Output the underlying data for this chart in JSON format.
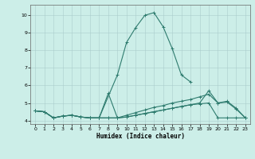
{
  "xlabel": "Humidex (Indice chaleur)",
  "bg_color": "#cceee8",
  "grid_color": "#aacccc",
  "line_color": "#2e7b6e",
  "xlim": [
    -0.5,
    23.5
  ],
  "ylim": [
    3.8,
    10.6
  ],
  "yticks": [
    4,
    5,
    6,
    7,
    8,
    9,
    10
  ],
  "xticks": [
    0,
    1,
    2,
    3,
    4,
    5,
    6,
    7,
    8,
    9,
    10,
    11,
    12,
    13,
    14,
    15,
    16,
    17,
    18,
    19,
    20,
    21,
    22,
    23
  ],
  "series": [
    {
      "x": [
        0,
        1,
        2,
        3,
        4,
        5,
        6,
        7,
        9,
        10,
        11,
        12,
        13,
        14,
        15,
        16,
        17
      ],
      "y": [
        4.55,
        4.5,
        4.15,
        4.25,
        4.3,
        4.2,
        4.15,
        4.15,
        6.6,
        8.45,
        9.3,
        10.0,
        10.15,
        9.35,
        8.1,
        6.6,
        6.2
      ]
    },
    {
      "x": [
        0,
        1,
        2,
        3,
        4,
        5,
        6,
        7,
        8,
        9,
        10,
        11,
        12,
        13,
        14,
        15,
        16,
        17,
        18,
        19,
        20,
        21,
        22,
        23
      ],
      "y": [
        4.55,
        4.5,
        4.15,
        4.25,
        4.3,
        4.2,
        4.15,
        4.15,
        5.55,
        4.15,
        4.2,
        4.3,
        4.4,
        4.5,
        4.6,
        4.7,
        4.8,
        4.9,
        5.0,
        5.7,
        5.0,
        5.05,
        4.65,
        4.15
      ]
    },
    {
      "x": [
        0,
        1,
        2,
        3,
        4,
        5,
        6,
        7,
        8,
        9,
        10,
        11,
        12,
        13,
        14,
        15,
        16,
        17,
        18,
        19,
        20,
        21,
        22,
        23
      ],
      "y": [
        4.55,
        4.5,
        4.15,
        4.25,
        4.3,
        4.2,
        4.15,
        4.15,
        4.15,
        4.15,
        4.3,
        4.45,
        4.6,
        4.75,
        4.85,
        5.0,
        5.1,
        5.2,
        5.35,
        5.5,
        5.0,
        5.1,
        4.7,
        4.15
      ]
    },
    {
      "x": [
        0,
        1,
        2,
        3,
        4,
        5,
        6,
        7,
        8,
        9,
        10,
        11,
        12,
        13,
        14,
        15,
        16,
        17,
        18,
        19,
        20,
        21,
        22,
        23
      ],
      "y": [
        4.55,
        4.5,
        4.15,
        4.25,
        4.3,
        4.2,
        4.15,
        4.15,
        4.15,
        4.15,
        4.2,
        4.3,
        4.4,
        4.5,
        4.6,
        4.7,
        4.8,
        4.9,
        4.95,
        5.0,
        4.15,
        4.15,
        4.15,
        4.15
      ]
    }
  ]
}
